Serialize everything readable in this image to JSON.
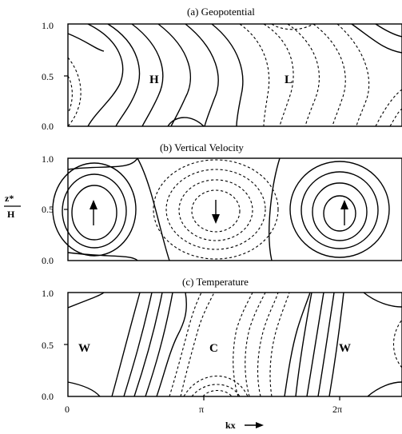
{
  "figure": {
    "panels": [
      {
        "id": "a",
        "title": "(a) Geopotential",
        "labels": [
          "H",
          "L"
        ]
      },
      {
        "id": "b",
        "title": "(b) Vertical Velocity",
        "labels": []
      },
      {
        "id": "c",
        "title": "(c) Temperature",
        "labels": [
          "W",
          "C",
          "W"
        ]
      }
    ],
    "y_ticks": [
      "1.0",
      "0.5",
      "0.0"
    ],
    "y_axis_label_top": "z*",
    "y_axis_label_bottom": "H",
    "x_ticks": [
      "0",
      "π",
      "2π"
    ],
    "x_axis_label": "kx"
  }
}
